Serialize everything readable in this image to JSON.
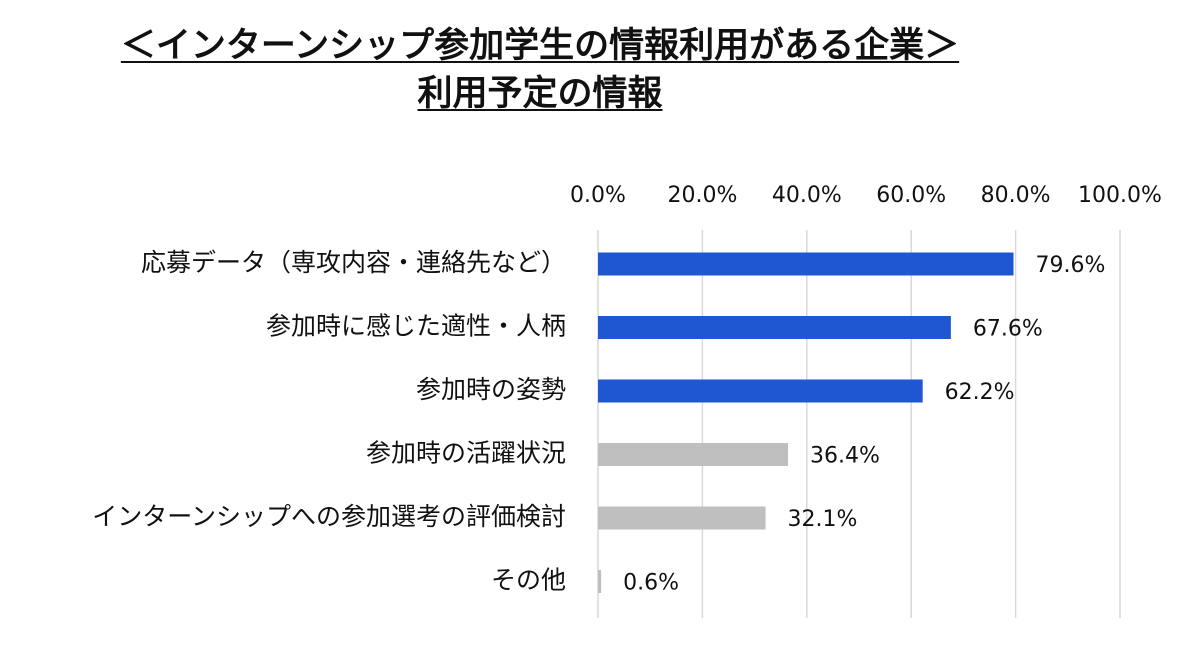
{
  "title": {
    "line1": "＜インターンシップ参加学生の情報利用がある企業＞",
    "line2": "利用予定の情報"
  },
  "colors": {
    "highlight": "#1f56d1",
    "muted": "#bfbfbf",
    "grid": "#d9d9d9"
  },
  "chart_data": {
    "type": "bar",
    "orientation": "horizontal",
    "title": "＜インターンシップ参加学生の情報利用がある企業＞ 利用予定の情報",
    "categories": [
      "応募データ（専攻内容・連絡先など）",
      "参加時に感じた適性・人柄",
      "参加時の姿勢",
      "参加時の活躍状況",
      "インターンシップへの参加選考の評価検討",
      "その他"
    ],
    "values": [
      79.6,
      67.6,
      62.2,
      36.4,
      32.1,
      0.6
    ],
    "value_labels": [
      "79.6%",
      "67.6%",
      "62.2%",
      "36.4%",
      "32.1%",
      "0.6%"
    ],
    "highlighted": [
      true,
      true,
      true,
      false,
      false,
      false
    ],
    "xlim": [
      0,
      100
    ],
    "x_ticks": [
      0,
      20,
      40,
      60,
      80,
      100
    ],
    "x_tick_labels": [
      "0.0%",
      "20.0%",
      "40.0%",
      "60.0%",
      "80.0%",
      "100.0%"
    ],
    "x_axis_position": "top",
    "grid": true,
    "legend": "none",
    "xlabel": "",
    "ylabel": ""
  }
}
